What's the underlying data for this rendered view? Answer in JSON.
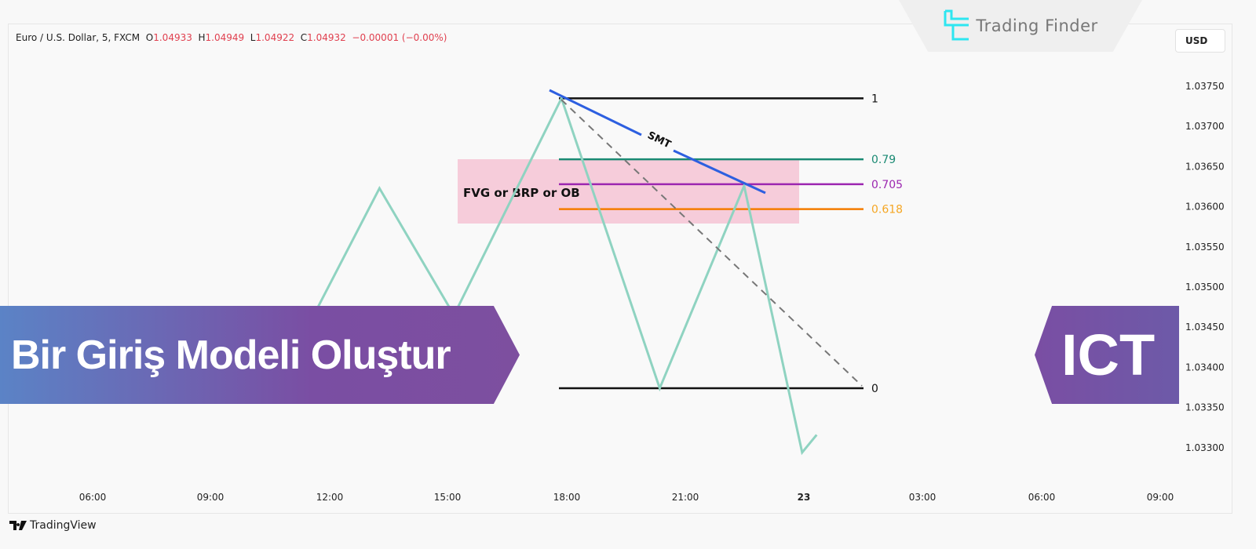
{
  "header": {
    "symbol": "Euro / U.S. Dollar, 5, FXCM",
    "open_label": "O",
    "open": "1.04933",
    "high_label": "H",
    "high": "1.04949",
    "low_label": "L",
    "low": "1.04922",
    "close_label": "C",
    "close": "1.04932",
    "change": "−0.00001 (−0.00%)"
  },
  "currency": "USD",
  "logo": {
    "text": "Trading Finder",
    "icon": "trading-finder-logo"
  },
  "footer": {
    "brand": "TradingView",
    "icon": "tradingview-logo"
  },
  "banners": {
    "left": "Bir Giriş Modeli Oluştur",
    "right": "ICT"
  },
  "price_axis": [
    "1.03750",
    "1.03700",
    "1.03650",
    "1.03600",
    "1.03550",
    "1.03500",
    "1.03450",
    "1.03400",
    "1.03350",
    "1.03300"
  ],
  "time_axis": [
    "06:00",
    "09:00",
    "12:00",
    "15:00",
    "18:00",
    "21:00",
    "23",
    "03:00",
    "06:00",
    "09:00"
  ],
  "zigzag": [
    {
      "time": "22 11:24",
      "price": 1.03447
    },
    {
      "time": "22 13:15",
      "price": 1.03623
    },
    {
      "time": "22 15:08",
      "price": 1.03465
    },
    {
      "time": "22 17:51",
      "price": 1.03735
    },
    {
      "time": "22 20:20",
      "price": 1.03374
    },
    {
      "time": "22 22:28",
      "price": 1.03626
    },
    {
      "time": "22 23:56",
      "price": 1.03294
    },
    {
      "time": "23 00:18",
      "price": 1.03316
    }
  ],
  "fib": [
    {
      "label": "1",
      "price": 1.03735,
      "color": "#111111"
    },
    {
      "label": "0.79",
      "price": 1.03659,
      "color": "#1a8a73"
    },
    {
      "label": "0.705",
      "price": 1.03628,
      "color": "#9c27b0"
    },
    {
      "label": "0.618",
      "price": 1.03597,
      "color": "#f57c00"
    },
    {
      "label": "0",
      "price": 1.03374,
      "color": "#111111"
    }
  ],
  "fib_label_colors": {
    "0.618": "#f5a623"
  },
  "zone": {
    "label": "FVG  or  BRP  or  OB",
    "color": "#f5c6d6"
  },
  "smt": {
    "label": "SMT",
    "color": "#2d5fe0"
  },
  "colors": {
    "zigzag": "#8fd3c1",
    "down": "#e0404f",
    "dashed": "#777777"
  }
}
